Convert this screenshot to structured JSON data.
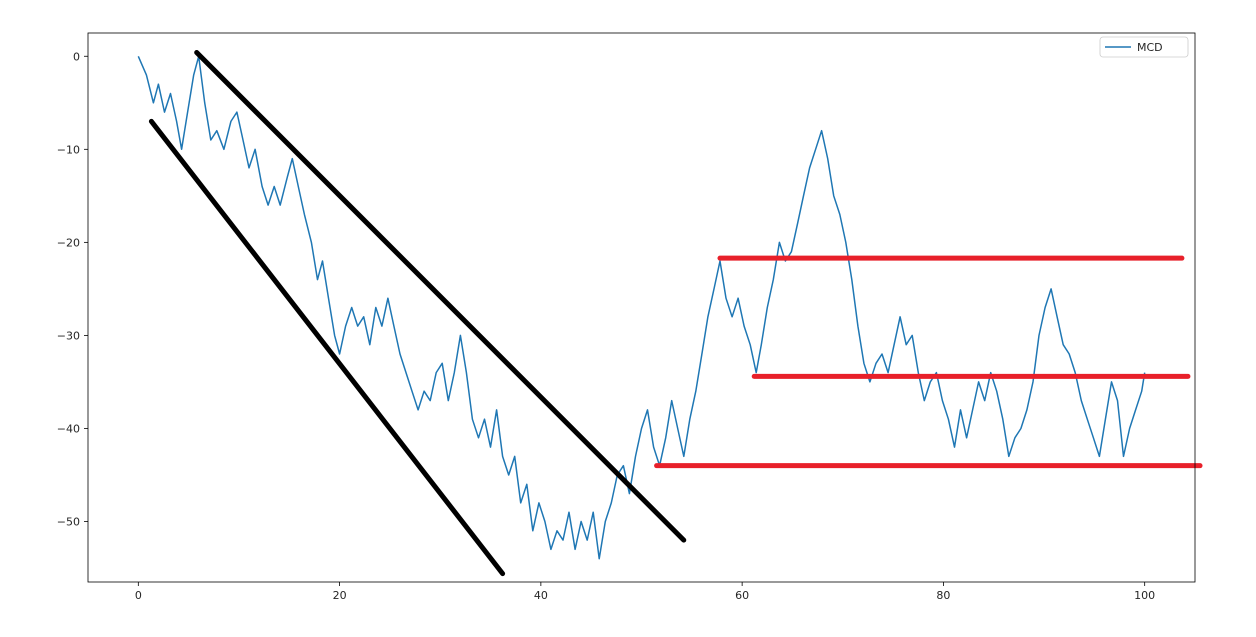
{
  "chart_data": {
    "type": "line",
    "title": "",
    "xlabel": "",
    "ylabel": "",
    "xlim": [
      -5,
      105
    ],
    "ylim": [
      -56.5,
      2.5
    ],
    "x_ticks": [
      0,
      20,
      40,
      60,
      80,
      100
    ],
    "y_ticks": [
      0,
      -10,
      -20,
      -30,
      -40,
      -50
    ],
    "grid": false,
    "legend": {
      "placement": "top-right",
      "entries": [
        "MCD"
      ]
    },
    "series": [
      {
        "name": "MCD",
        "color": "#1f77b4",
        "points": [
          [
            0,
            0
          ],
          [
            0.8,
            -2
          ],
          [
            1.5,
            -5
          ],
          [
            2,
            -3
          ],
          [
            2.6,
            -6
          ],
          [
            3.2,
            -4
          ],
          [
            3.8,
            -7
          ],
          [
            4.3,
            -10
          ],
          [
            4.9,
            -6
          ],
          [
            5.5,
            -2
          ],
          [
            6,
            0
          ],
          [
            6.6,
            -5
          ],
          [
            7.2,
            -9
          ],
          [
            7.8,
            -8
          ],
          [
            8.5,
            -10
          ],
          [
            9.2,
            -7
          ],
          [
            9.8,
            -6
          ],
          [
            10.4,
            -9
          ],
          [
            11,
            -12
          ],
          [
            11.6,
            -10
          ],
          [
            12.3,
            -14
          ],
          [
            12.9,
            -16
          ],
          [
            13.5,
            -14
          ],
          [
            14.1,
            -16
          ],
          [
            14.8,
            -13
          ],
          [
            15.3,
            -11
          ],
          [
            15.9,
            -14
          ],
          [
            16.5,
            -17
          ],
          [
            17.2,
            -20
          ],
          [
            17.8,
            -24
          ],
          [
            18.3,
            -22
          ],
          [
            18.9,
            -26
          ],
          [
            19.5,
            -30
          ],
          [
            20,
            -32
          ],
          [
            20.6,
            -29
          ],
          [
            21.2,
            -27
          ],
          [
            21.8,
            -29
          ],
          [
            22.4,
            -28
          ],
          [
            23,
            -31
          ],
          [
            23.6,
            -27
          ],
          [
            24.2,
            -29
          ],
          [
            24.8,
            -26
          ],
          [
            25.4,
            -29
          ],
          [
            26,
            -32
          ],
          [
            26.6,
            -34
          ],
          [
            27.2,
            -36
          ],
          [
            27.8,
            -38
          ],
          [
            28.4,
            -36
          ],
          [
            29,
            -37
          ],
          [
            29.6,
            -34
          ],
          [
            30.2,
            -33
          ],
          [
            30.8,
            -37
          ],
          [
            31.4,
            -34
          ],
          [
            32,
            -30
          ],
          [
            32.6,
            -34
          ],
          [
            33.2,
            -39
          ],
          [
            33.8,
            -41
          ],
          [
            34.4,
            -39
          ],
          [
            35,
            -42
          ],
          [
            35.6,
            -38
          ],
          [
            36.2,
            -43
          ],
          [
            36.8,
            -45
          ],
          [
            37.4,
            -43
          ],
          [
            38,
            -48
          ],
          [
            38.6,
            -46
          ],
          [
            39.2,
            -51
          ],
          [
            39.8,
            -48
          ],
          [
            40.4,
            -50
          ],
          [
            41,
            -53
          ],
          [
            41.6,
            -51
          ],
          [
            42.2,
            -52
          ],
          [
            42.8,
            -49
          ],
          [
            43.4,
            -53
          ],
          [
            44,
            -50
          ],
          [
            44.6,
            -52
          ],
          [
            45.2,
            -49
          ],
          [
            45.8,
            -54
          ],
          [
            46.4,
            -50
          ],
          [
            47,
            -48
          ],
          [
            47.6,
            -45
          ],
          [
            48.2,
            -44
          ],
          [
            48.8,
            -47
          ],
          [
            49.4,
            -43
          ],
          [
            50,
            -40
          ],
          [
            50.6,
            -38
          ],
          [
            51.2,
            -42
          ],
          [
            51.8,
            -44
          ],
          [
            52.4,
            -41
          ],
          [
            53,
            -37
          ],
          [
            53.6,
            -40
          ],
          [
            54.2,
            -43
          ],
          [
            54.8,
            -39
          ],
          [
            55.4,
            -36
          ],
          [
            56,
            -32
          ],
          [
            56.6,
            -28
          ],
          [
            57.2,
            -25
          ],
          [
            57.8,
            -22
          ],
          [
            58.4,
            -26
          ],
          [
            59,
            -28
          ],
          [
            59.6,
            -26
          ],
          [
            60.2,
            -29
          ],
          [
            60.8,
            -31
          ],
          [
            61.4,
            -34
          ],
          [
            61.9,
            -31
          ],
          [
            62.5,
            -27
          ],
          [
            63.1,
            -24
          ],
          [
            63.7,
            -20
          ],
          [
            64.3,
            -22
          ],
          [
            64.9,
            -21
          ],
          [
            65.5,
            -18
          ],
          [
            66.1,
            -15
          ],
          [
            66.7,
            -12
          ],
          [
            67.3,
            -10
          ],
          [
            67.9,
            -8
          ],
          [
            68.5,
            -11
          ],
          [
            69.1,
            -15
          ],
          [
            69.7,
            -17
          ],
          [
            70.3,
            -20
          ],
          [
            70.9,
            -24
          ],
          [
            71.5,
            -29
          ],
          [
            72.1,
            -33
          ],
          [
            72.7,
            -35
          ],
          [
            73.3,
            -33
          ],
          [
            73.9,
            -32
          ],
          [
            74.5,
            -34
          ],
          [
            75.1,
            -31
          ],
          [
            75.7,
            -28
          ],
          [
            76.3,
            -31
          ],
          [
            76.9,
            -30
          ],
          [
            77.5,
            -34
          ],
          [
            78.1,
            -37
          ],
          [
            78.7,
            -35
          ],
          [
            79.3,
            -34
          ],
          [
            79.9,
            -37
          ],
          [
            80.5,
            -39
          ],
          [
            81.1,
            -42
          ],
          [
            81.7,
            -38
          ],
          [
            82.3,
            -41
          ],
          [
            82.9,
            -38
          ],
          [
            83.5,
            -35
          ],
          [
            84.1,
            -37
          ],
          [
            84.7,
            -34
          ],
          [
            85.3,
            -36
          ],
          [
            85.9,
            -39
          ],
          [
            86.5,
            -43
          ],
          [
            87.1,
            -41
          ],
          [
            87.7,
            -40
          ],
          [
            88.3,
            -38
          ],
          [
            88.9,
            -35
          ],
          [
            89.5,
            -30
          ],
          [
            90.1,
            -27
          ],
          [
            90.7,
            -25
          ],
          [
            91.3,
            -28
          ],
          [
            91.9,
            -31
          ],
          [
            92.5,
            -32
          ],
          [
            93.1,
            -34
          ],
          [
            93.7,
            -37
          ],
          [
            94.3,
            -39
          ],
          [
            94.9,
            -41
          ],
          [
            95.5,
            -43
          ],
          [
            96.1,
            -39
          ],
          [
            96.7,
            -35
          ],
          [
            97.3,
            -37
          ],
          [
            97.9,
            -43
          ],
          [
            98.5,
            -40
          ],
          [
            99.1,
            -38
          ],
          [
            99.7,
            -36
          ],
          [
            100,
            -34
          ]
        ]
      }
    ],
    "annotations": [
      {
        "kind": "trendline",
        "color": "#000000",
        "from": [
          5.8,
          0.4
        ],
        "to": [
          54.2,
          -52
        ]
      },
      {
        "kind": "trendline",
        "color": "#000000",
        "from": [
          1.3,
          -7
        ],
        "to": [
          36.2,
          -55.6
        ]
      },
      {
        "kind": "hline",
        "color": "#e8202a",
        "y": -21.7,
        "x_from": 57.8,
        "x_to": 103.7
      },
      {
        "kind": "hline",
        "color": "#e8202a",
        "y": -34.4,
        "x_from": 61.2,
        "x_to": 104.3
      },
      {
        "kind": "hline",
        "color": "#e8202a",
        "y": -44,
        "x_from": 51.5,
        "x_to": 105.5
      }
    ]
  }
}
